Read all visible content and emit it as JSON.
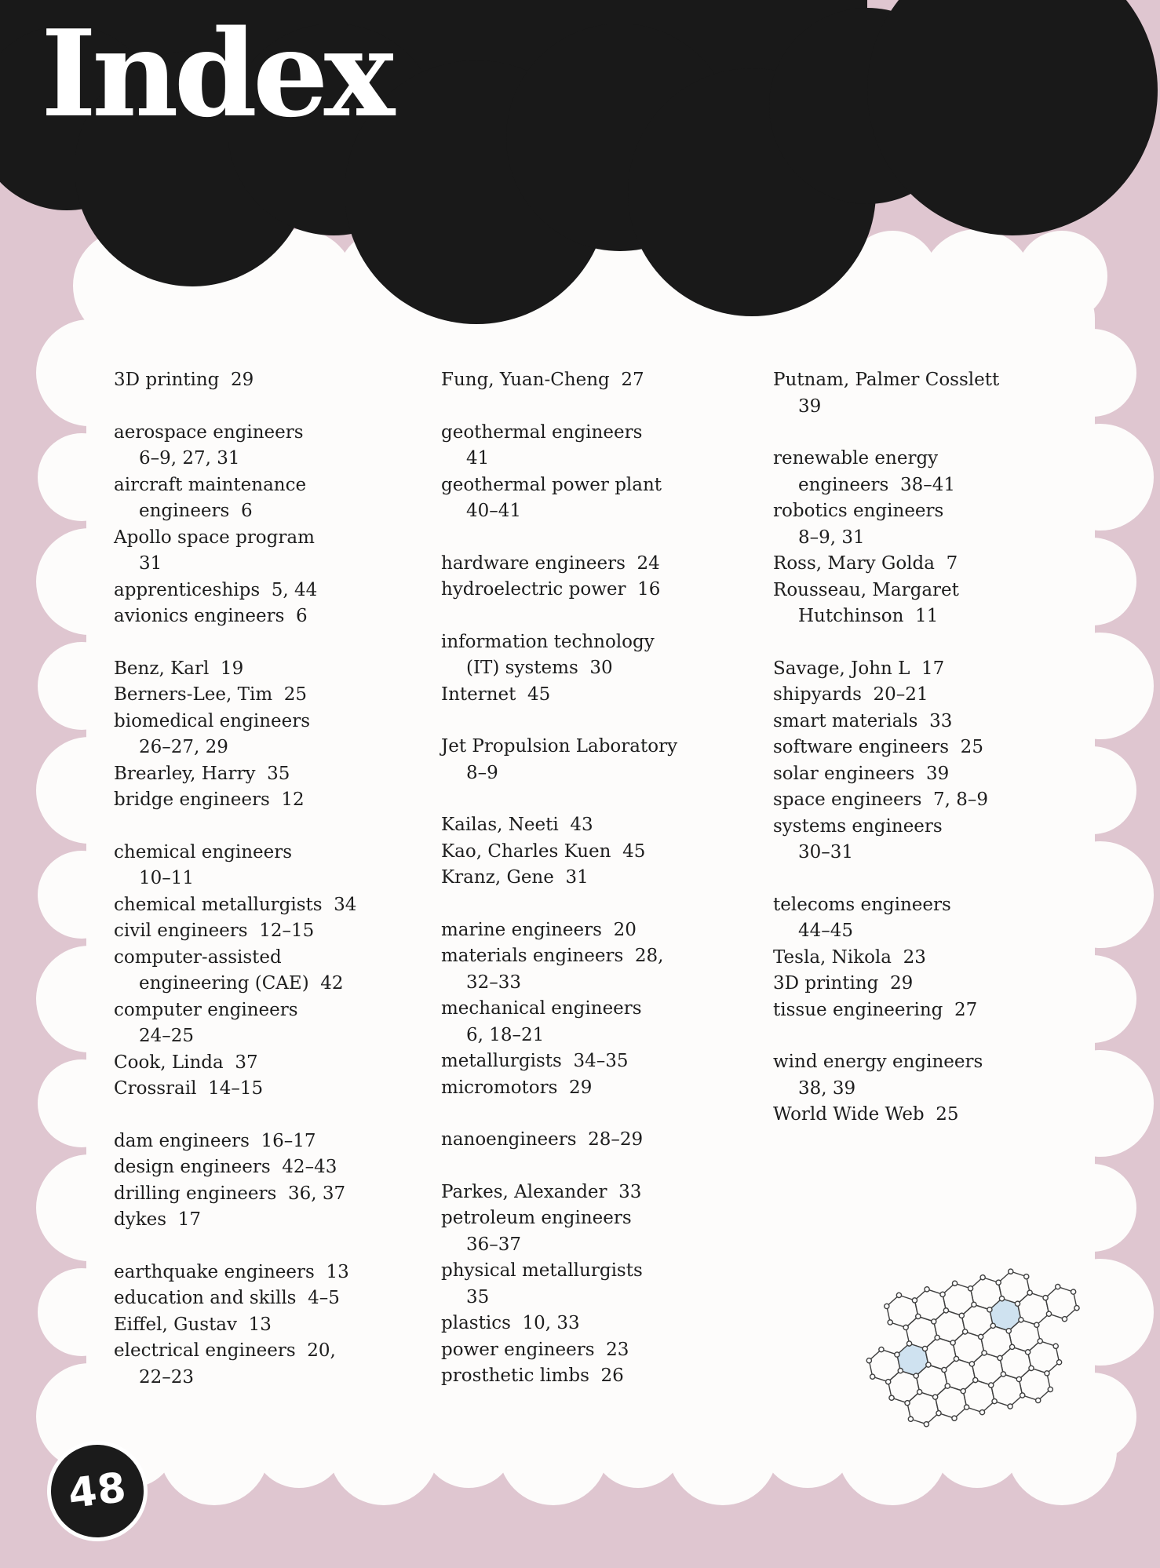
{
  "page": {
    "title": "Index",
    "page_number": "48"
  },
  "colors": {
    "background_pink": "#dfc6d0",
    "ink_black": "#191919",
    "paper_white": "#fdfcfb",
    "text_color": "#1d1d1d",
    "lattice_highlight": "#cfe2f0",
    "lattice_line": "#3f3f3f"
  },
  "illustration": {
    "name": "graphene-lattice-drawing",
    "description": "hand-drawn hexagonal graphene lattice with open-circle atoms, two cells shaded light blue"
  },
  "index_columns": [
    {
      "groups": [
        [
          {
            "t": "3D printing  29"
          }
        ],
        [
          {
            "t": "aerospace engineers"
          },
          {
            "t": "6–9, 27, 31",
            "i": 1
          },
          {
            "t": "aircraft maintenance"
          },
          {
            "t": "engineers  6",
            "i": 1
          },
          {
            "t": "Apollo space program"
          },
          {
            "t": "31",
            "i": 1
          },
          {
            "t": "apprenticeships  5, 44"
          },
          {
            "t": "avionics engineers  6"
          }
        ],
        [
          {
            "t": "Benz, Karl  19"
          },
          {
            "t": "Berners-Lee, Tim  25"
          },
          {
            "t": "biomedical engineers"
          },
          {
            "t": "26–27, 29",
            "i": 1
          },
          {
            "t": "Brearley, Harry  35"
          },
          {
            "t": "bridge engineers  12"
          }
        ],
        [
          {
            "t": "chemical engineers"
          },
          {
            "t": "10–11",
            "i": 1
          },
          {
            "t": "chemical metallurgists  34"
          },
          {
            "t": "civil engineers  12–15"
          },
          {
            "t": "computer-assisted"
          },
          {
            "t": "engineering (CAE)  42",
            "i": 1
          },
          {
            "t": "computer engineers"
          },
          {
            "t": "24–25",
            "i": 1
          },
          {
            "t": "Cook, Linda  37"
          },
          {
            "t": "Crossrail  14–15"
          }
        ],
        [
          {
            "t": "dam engineers  16–17"
          },
          {
            "t": "design engineers  42–43"
          },
          {
            "t": "drilling engineers  36, 37"
          },
          {
            "t": "dykes  17"
          }
        ],
        [
          {
            "t": "earthquake engineers  13"
          },
          {
            "t": "education and skills  4–5"
          },
          {
            "t": "Eiffel, Gustav  13"
          },
          {
            "t": "electrical engineers  20,"
          },
          {
            "t": "22–23",
            "i": 1
          }
        ]
      ]
    },
    {
      "groups": [
        [
          {
            "t": "Fung, Yuan-Cheng  27"
          }
        ],
        [
          {
            "t": "geothermal engineers"
          },
          {
            "t": "41",
            "i": 1
          },
          {
            "t": "geothermal power plant"
          },
          {
            "t": "40–41",
            "i": 1
          }
        ],
        [
          {
            "t": "hardware engineers  24"
          },
          {
            "t": "hydroelectric power  16"
          }
        ],
        [
          {
            "t": "information technology"
          },
          {
            "t": "(IT) systems  30",
            "i": 1
          },
          {
            "t": "Internet  45"
          }
        ],
        [
          {
            "t": "Jet Propulsion Laboratory"
          },
          {
            "t": "8–9",
            "i": 1
          }
        ],
        [
          {
            "t": "Kailas, Neeti  43"
          },
          {
            "t": "Kao, Charles Kuen  45"
          },
          {
            "t": "Kranz, Gene  31"
          }
        ],
        [
          {
            "t": "marine engineers  20"
          },
          {
            "t": "materials engineers  28,"
          },
          {
            "t": "32–33",
            "i": 1
          },
          {
            "t": "mechanical engineers"
          },
          {
            "t": "6, 18–21",
            "i": 1
          },
          {
            "t": "metallurgists  34–35"
          },
          {
            "t": "micromotors  29"
          }
        ],
        [
          {
            "t": "nanoengineers  28–29"
          }
        ],
        [
          {
            "t": "Parkes, Alexander  33"
          },
          {
            "t": "petroleum engineers"
          },
          {
            "t": "36–37",
            "i": 1
          },
          {
            "t": "physical metallurgists"
          },
          {
            "t": "35",
            "i": 1
          },
          {
            "t": "plastics  10, 33"
          },
          {
            "t": "power engineers  23"
          },
          {
            "t": "prosthetic limbs  26"
          }
        ]
      ]
    },
    {
      "groups": [
        [
          {
            "t": "Putnam, Palmer Cosslett"
          },
          {
            "t": "39",
            "i": 1
          }
        ],
        [
          {
            "t": "renewable energy"
          },
          {
            "t": "engineers  38–41",
            "i": 1
          },
          {
            "t": "robotics engineers"
          },
          {
            "t": "8–9, 31",
            "i": 1
          },
          {
            "t": "Ross, Mary Golda  7"
          },
          {
            "t": "Rousseau, Margaret"
          },
          {
            "t": "Hutchinson  11",
            "i": 1
          }
        ],
        [
          {
            "t": "Savage, John L  17"
          },
          {
            "t": "shipyards  20–21"
          },
          {
            "t": "smart materials  33"
          },
          {
            "t": "software engineers  25"
          },
          {
            "t": "solar engineers  39"
          },
          {
            "t": "space engineers  7, 8–9"
          },
          {
            "t": "systems engineers"
          },
          {
            "t": "30–31",
            "i": 1
          }
        ],
        [
          {
            "t": "telecoms engineers"
          },
          {
            "t": "44–45",
            "i": 1
          },
          {
            "t": "Tesla, Nikola  23"
          },
          {
            "t": "3D printing  29"
          },
          {
            "t": "tissue engineering  27"
          }
        ],
        [
          {
            "t": "wind energy engineers"
          },
          {
            "t": "38, 39",
            "i": 1
          },
          {
            "t": "World Wide Web  25"
          }
        ]
      ]
    }
  ]
}
